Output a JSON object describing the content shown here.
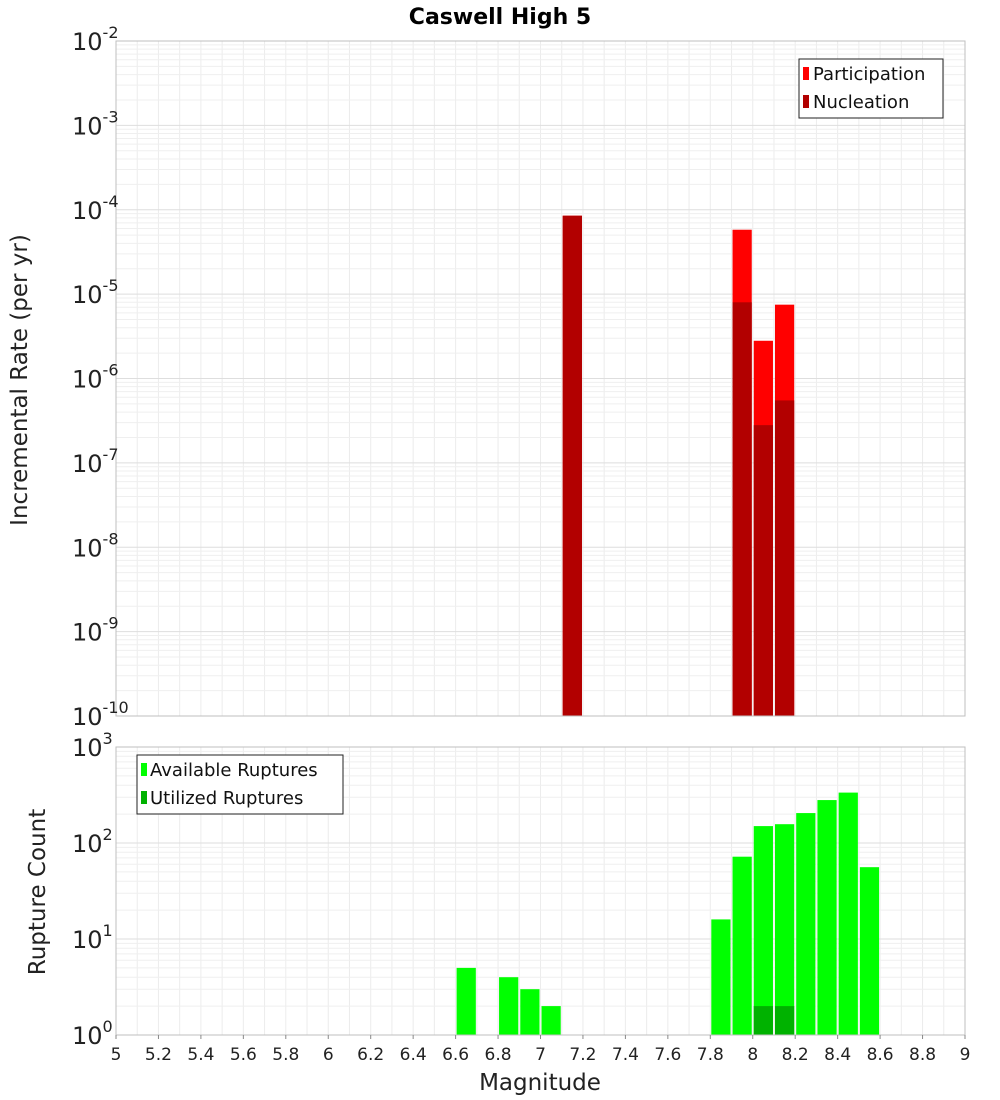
{
  "chart_data": [
    {
      "type": "bar",
      "panel": "top",
      "title": "Caswell High 5",
      "xlabel": "Magnitude",
      "ylabel": "Incremental Rate (per yr)",
      "yscale": "log",
      "ylim_exp": [
        -10,
        -2
      ],
      "xlim": [
        5,
        9
      ],
      "bar_width": 0.1,
      "grid": true,
      "legend_position": "top-right",
      "series": [
        {
          "name": "Participation",
          "color": "#ff0000",
          "points": [
            {
              "x": 7.15,
              "y": 8.5e-05
            },
            {
              "x": 7.95,
              "y": 5.8e-05
            },
            {
              "x": 8.05,
              "y": 2.8e-06
            },
            {
              "x": 8.15,
              "y": 7.5e-06
            }
          ]
        },
        {
          "name": "Nucleation",
          "color": "#b20000",
          "points": [
            {
              "x": 7.15,
              "y": 8.5e-05
            },
            {
              "x": 7.95,
              "y": 8e-06
            },
            {
              "x": 8.05,
              "y": 2.8e-07
            },
            {
              "x": 8.15,
              "y": 5.5e-07
            }
          ]
        }
      ]
    },
    {
      "type": "bar",
      "panel": "bottom",
      "xlabel": "Magnitude",
      "ylabel": "Rupture Count",
      "yscale": "log",
      "ylim_exp": [
        0,
        3
      ],
      "xlim": [
        5,
        9
      ],
      "bar_width": 0.1,
      "grid": true,
      "legend_position": "top-left",
      "series": [
        {
          "name": "Available Ruptures",
          "color": "#00ff00",
          "points": [
            {
              "x": 6.65,
              "y": 5
            },
            {
              "x": 6.85,
              "y": 4
            },
            {
              "x": 6.95,
              "y": 3
            },
            {
              "x": 7.05,
              "y": 2
            },
            {
              "x": 7.15,
              "y": 1
            },
            {
              "x": 7.85,
              "y": 16
            },
            {
              "x": 7.95,
              "y": 72
            },
            {
              "x": 8.05,
              "y": 150
            },
            {
              "x": 8.15,
              "y": 157
            },
            {
              "x": 8.25,
              "y": 205
            },
            {
              "x": 8.35,
              "y": 280
            },
            {
              "x": 8.45,
              "y": 335
            },
            {
              "x": 8.55,
              "y": 56
            }
          ]
        },
        {
          "name": "Utilized Ruptures",
          "color": "#00b200",
          "points": [
            {
              "x": 7.15,
              "y": 1
            },
            {
              "x": 7.95,
              "y": 1
            },
            {
              "x": 8.05,
              "y": 2
            },
            {
              "x": 8.15,
              "y": 2
            }
          ]
        }
      ]
    }
  ],
  "x_ticks": [
    "5",
    "5.2",
    "5.4",
    "5.6",
    "5.8",
    "6",
    "6.2",
    "6.4",
    "6.6",
    "6.8",
    "7",
    "7.2",
    "7.4",
    "7.6",
    "7.8",
    "8",
    "8.2",
    "8.4",
    "8.6",
    "8.8",
    "9"
  ],
  "top_y_ticks": [
    {
      "base": "10",
      "exp": "-10"
    },
    {
      "base": "10",
      "exp": "-9"
    },
    {
      "base": "10",
      "exp": "-8"
    },
    {
      "base": "10",
      "exp": "-7"
    },
    {
      "base": "10",
      "exp": "-6"
    },
    {
      "base": "10",
      "exp": "-5"
    },
    {
      "base": "10",
      "exp": "-4"
    },
    {
      "base": "10",
      "exp": "-3"
    },
    {
      "base": "10",
      "exp": "-2"
    }
  ],
  "bottom_y_ticks": [
    {
      "base": "10",
      "exp": "0"
    },
    {
      "base": "10",
      "exp": "1"
    },
    {
      "base": "10",
      "exp": "2"
    },
    {
      "base": "10",
      "exp": "3"
    }
  ]
}
